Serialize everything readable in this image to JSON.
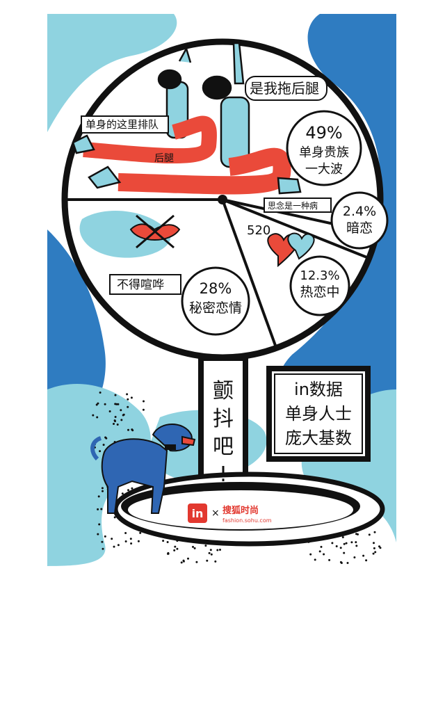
{
  "colors": {
    "light_blue": "#8fd3e0",
    "dark_blue": "#2f7cc1",
    "red": "#ea4a3a",
    "pink": "#f07a7a",
    "ink": "#111111",
    "dog_blue": "#2f66b3",
    "brand_red": "#e2382f"
  },
  "labels": {
    "queue": "单身的这里排队",
    "me_drag": "是我拖后腿",
    "hind_leg": "后腿",
    "thinking": "思念是一种病",
    "num_520": "520",
    "no_noise": "不得喧哗",
    "tremble": [
      "颤",
      "抖",
      "吧",
      "!"
    ],
    "box_line1": "in数据",
    "box_line2": "单身人士",
    "box_line3": "庞大基数"
  },
  "logo": {
    "brand": "搜狐时尚",
    "url": "fashion.sohu.com",
    "badge": "in",
    "cross": "×"
  },
  "chart_data": {
    "type": "pie",
    "categories": [
      "单身贵族一大波",
      "暗恋",
      "热恋中",
      "秘密恋情"
    ],
    "values": [
      49,
      2.4,
      12.3,
      28
    ],
    "value_labels": [
      "49%",
      "2.4%",
      "12.3%",
      "28%"
    ],
    "label_lines": [
      [
        "单身贵族",
        "一大波"
      ],
      [
        "暗恋"
      ],
      [
        "热恋中"
      ],
      [
        "秘密恋情"
      ]
    ]
  }
}
